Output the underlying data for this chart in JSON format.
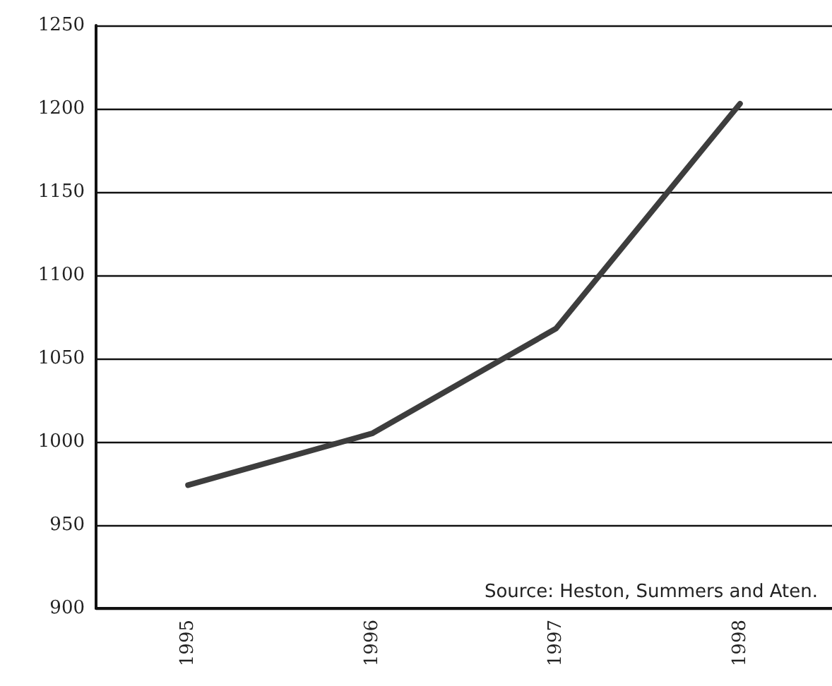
{
  "chart_data": {
    "type": "line",
    "categories": [
      "1995",
      "1996",
      "1997",
      "1998"
    ],
    "series": [
      {
        "color": "#3d3d3d",
        "values": [
          974,
          1005,
          1068,
          1203
        ]
      }
    ],
    "ylim": [
      900,
      1250
    ],
    "yticks": [
      900,
      950,
      1000,
      1050,
      1100,
      1150,
      1200,
      1250
    ],
    "grid": "y",
    "marker": "none",
    "line_style": "solid",
    "annotations": [
      "Source: Heston, Summers and Aten."
    ]
  }
}
